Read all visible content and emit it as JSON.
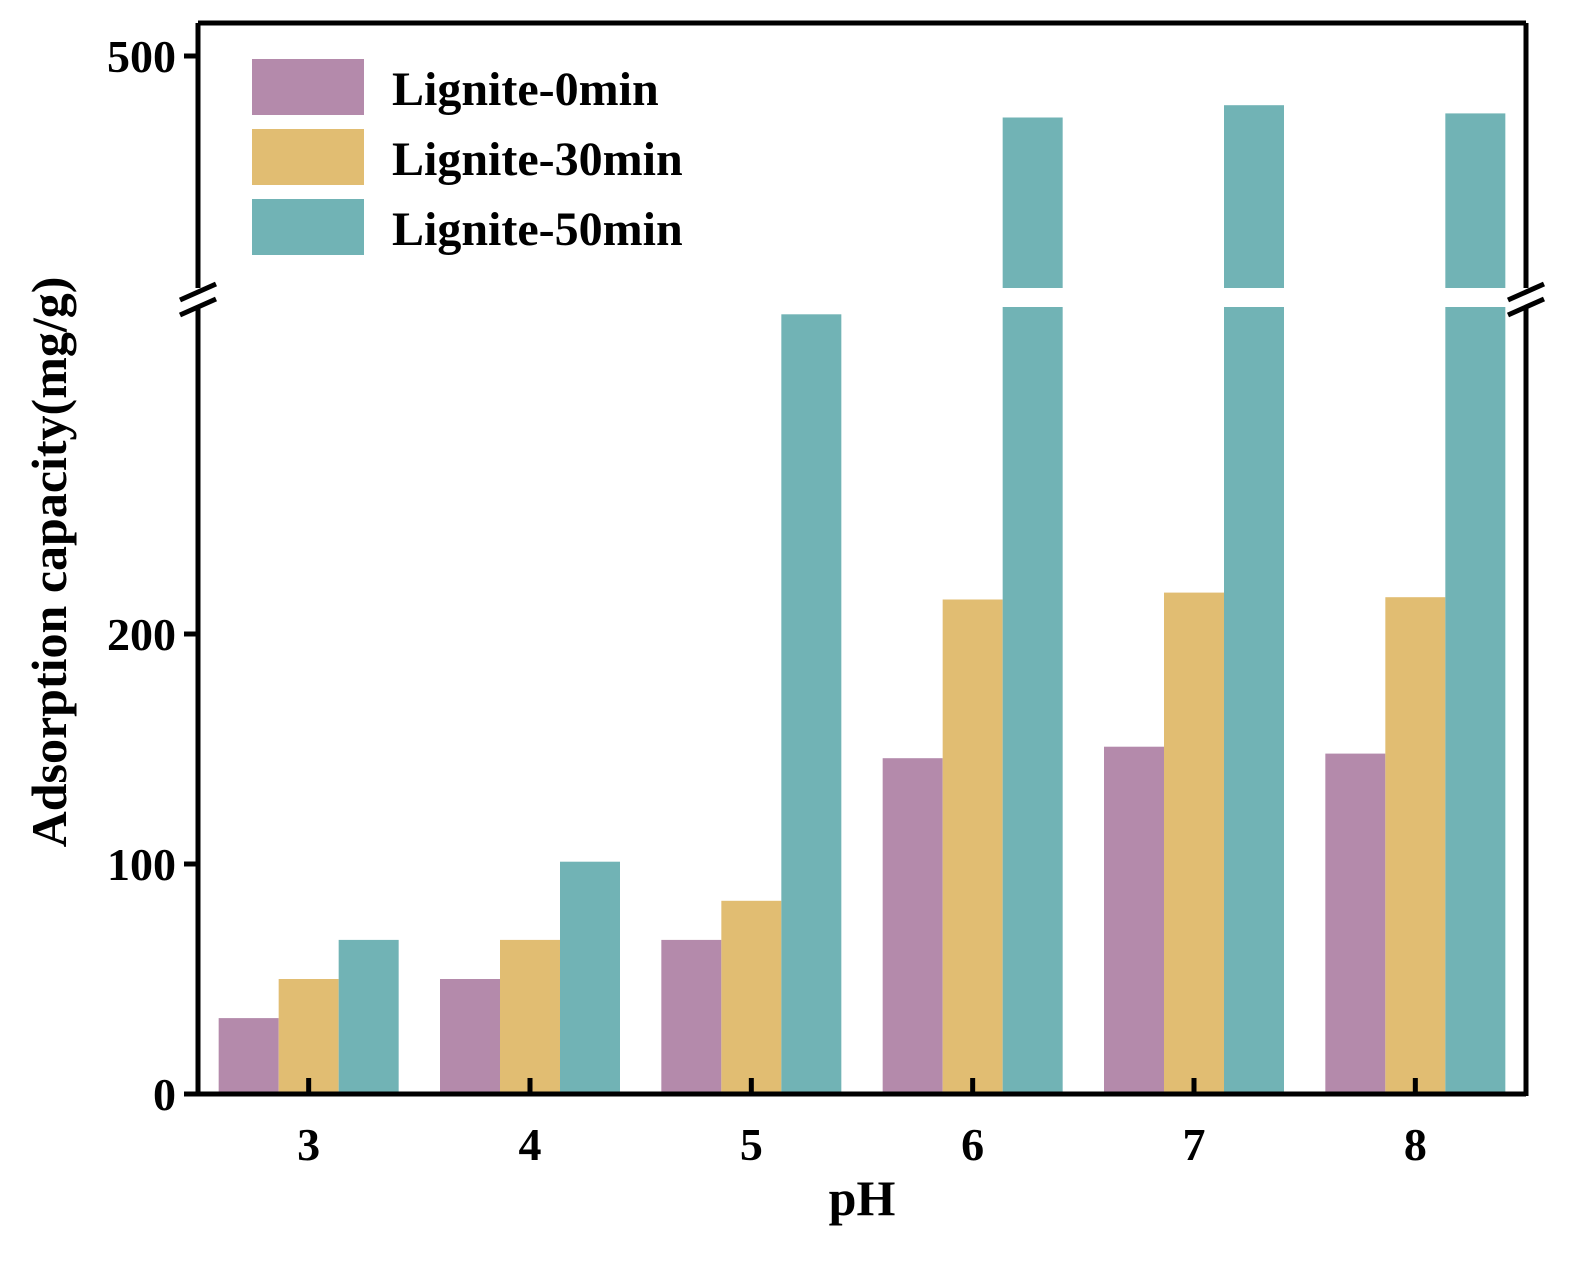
{
  "chart_data": {
    "type": "bar",
    "title": "",
    "xlabel": "pH",
    "ylabel": "Adsorption capacity(mg/g)",
    "categories": [
      "3",
      "4",
      "5",
      "6",
      "7",
      "8"
    ],
    "series": [
      {
        "name": "Lignite-0min",
        "color": "#b48aab",
        "values": [
          33,
          50,
          67,
          146,
          151,
          148
        ]
      },
      {
        "name": "Lignite-30min",
        "color": "#e1bd72",
        "values": [
          50,
          67,
          84,
          215,
          218,
          216
        ]
      },
      {
        "name": "Lignite-50min",
        "color": "#71b3b5",
        "values": [
          67,
          101,
          339,
          485,
          488,
          486
        ]
      }
    ],
    "y_break": {
      "lower_segment": [
        0,
        340
      ],
      "upper_segment": [
        440,
        540
      ],
      "style": "broken axis"
    },
    "yticks": [
      {
        "value": 0,
        "label": "0"
      },
      {
        "value": 100,
        "label": "100"
      },
      {
        "value": 200,
        "label": "200"
      },
      {
        "value": 500,
        "label": "500"
      }
    ],
    "grid": false,
    "legend_position": "top-left"
  }
}
